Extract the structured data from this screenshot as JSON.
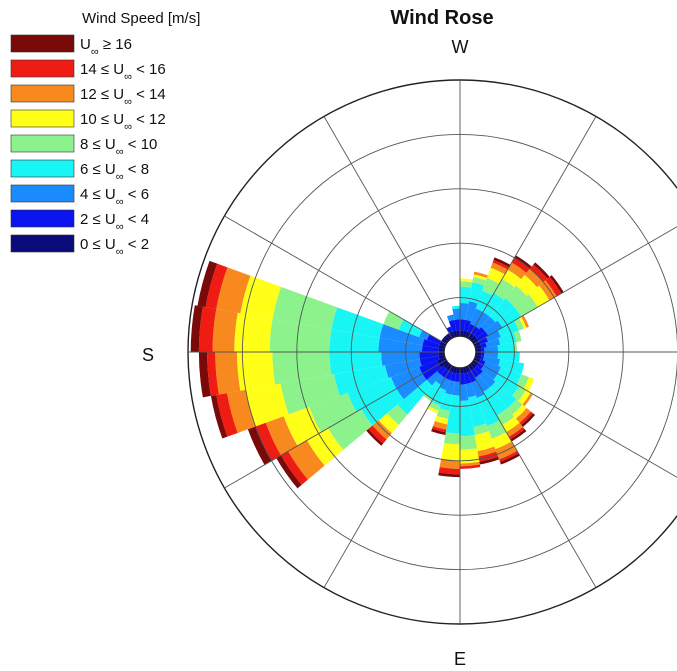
{
  "chart_data": {
    "type": "wind-rose",
    "title": "Wind Rose",
    "directions_labels": {
      "top": "W",
      "left": "S",
      "bottom": "E"
    },
    "legend": {
      "title": "Wind Speed [m/s]",
      "placement": "top-left",
      "entries": [
        {
          "label": "U∞ ≥ 16",
          "color": "#7a0a0a"
        },
        {
          "label": "14 ≤ U∞ < 16",
          "color": "#ee1c12"
        },
        {
          "label": "12 ≤ U∞ < 14",
          "color": "#f7891e"
        },
        {
          "label": "10 ≤ U∞ < 12",
          "color": "#ffff17"
        },
        {
          "label": "8 ≤ U∞ < 10",
          "color": "#8cf28c"
        },
        {
          "label": "6 ≤ U∞ < 8",
          "color": "#19f5f5"
        },
        {
          "label": "4 ≤ U∞ < 6",
          "color": "#1a8cff"
        },
        {
          "label": "2 ≤ U∞ < 4",
          "color": "#0a14f0"
        },
        {
          "label": "0 ≤ U∞ < 2",
          "color": "#0a0a7a"
        }
      ]
    },
    "bin_order": [
      "0-2",
      "2-4",
      "4-6",
      "6-8",
      "8-10",
      "10-12",
      "12-14",
      "14-16",
      ">=16"
    ],
    "bin_colors": [
      "#0a0a7a",
      "#0a14f0",
      "#1a8cff",
      "#19f5f5",
      "#8cf28c",
      "#ffff17",
      "#f7891e",
      "#ee1c12",
      "#7a0a0a"
    ],
    "grid": true,
    "rings": 5,
    "spokes": 12,
    "sectors": [
      {
        "angle_deg": 5,
        "cum": [
          0.08,
          0.09,
          0.14,
          0.22,
          0.22,
          0.22,
          0.22,
          0.22,
          0.22
        ]
      },
      {
        "angle_deg": 15,
        "cum": [
          0.08,
          0.09,
          0.15,
          0.24,
          0.24,
          0.24,
          0.24,
          0.24,
          0.24
        ]
      },
      {
        "angle_deg": 25,
        "cum": [
          0.08,
          0.1,
          0.16,
          0.24,
          0.27,
          0.29,
          0.29,
          0.29,
          0.29
        ]
      },
      {
        "angle_deg": 35,
        "cum": [
          0.08,
          0.1,
          0.16,
          0.25,
          0.28,
          0.3,
          0.31,
          0.31,
          0.31
        ]
      },
      {
        "angle_deg": 45,
        "cum": [
          0.08,
          0.11,
          0.17,
          0.27,
          0.3,
          0.32,
          0.34,
          0.35,
          0.36
        ]
      },
      {
        "angle_deg": 55,
        "cum": [
          0.08,
          0.11,
          0.17,
          0.27,
          0.31,
          0.34,
          0.36,
          0.37,
          0.38
        ]
      },
      {
        "angle_deg": 65,
        "cum": [
          0.08,
          0.12,
          0.18,
          0.29,
          0.34,
          0.38,
          0.42,
          0.43,
          0.44
        ]
      },
      {
        "angle_deg": 75,
        "cum": [
          0.08,
          0.12,
          0.17,
          0.28,
          0.31,
          0.37,
          0.39,
          0.41,
          0.42
        ]
      },
      {
        "angle_deg": 85,
        "cum": [
          0.08,
          0.12,
          0.18,
          0.31,
          0.36,
          0.41,
          0.42,
          0.43,
          0.43
        ]
      },
      {
        "angle_deg": 95,
        "cum": [
          0.08,
          0.11,
          0.16,
          0.3,
          0.34,
          0.4,
          0.43,
          0.45,
          0.46
        ]
      },
      {
        "angle_deg": 105,
        "cum": [
          0.08,
          0.11,
          0.16,
          0.22,
          0.25,
          0.27,
          0.29,
          0.3,
          0.31
        ]
      },
      {
        "angle_deg": 115,
        "cum": [
          0.08,
          0.11,
          0.15,
          0.21,
          0.23,
          0.24,
          0.24,
          0.24,
          0.24
        ]
      },
      {
        "angle_deg": 125,
        "cum": [
          0.08,
          0.11,
          0.14,
          0.2,
          0.21,
          0.21,
          0.21,
          0.21,
          0.21
        ]
      },
      {
        "angle_deg": 135,
        "cum": [
          0.08,
          0.11,
          0.16,
          0.3,
          0.35,
          0.39,
          0.42,
          0.44,
          0.45
        ]
      },
      {
        "angle_deg": 145,
        "cum": [
          0.09,
          0.16,
          0.27,
          0.42,
          0.56,
          0.65,
          0.73,
          0.76,
          0.78
        ]
      },
      {
        "angle_deg": 155,
        "cum": [
          0.09,
          0.16,
          0.27,
          0.44,
          0.59,
          0.69,
          0.76,
          0.8,
          0.83
        ]
      },
      {
        "angle_deg": 165,
        "cum": [
          0.08,
          0.15,
          0.28,
          0.47,
          0.67,
          0.8,
          0.87,
          0.91,
          0.93
        ]
      },
      {
        "angle_deg": 175,
        "cum": [
          0.08,
          0.15,
          0.29,
          0.48,
          0.69,
          0.82,
          0.9,
          0.93,
          0.96
        ]
      },
      {
        "angle_deg": 185,
        "cum": [
          0.08,
          0.14,
          0.3,
          0.48,
          0.7,
          0.83,
          0.91,
          0.96,
          0.99
        ]
      },
      {
        "angle_deg": 195,
        "cum": [
          0.08,
          0.14,
          0.3,
          0.48,
          0.7,
          0.82,
          0.91,
          0.95,
          0.98
        ]
      },
      {
        "angle_deg": 205,
        "cum": [
          0.08,
          0.13,
          0.16,
          0.24,
          0.3,
          0.3,
          0.3,
          0.3,
          0.3
        ]
      },
      {
        "angle_deg": 215,
        "cum": [
          0.08,
          0.08,
          0.08,
          0.08,
          0.08,
          0.08,
          0.08,
          0.08,
          0.08
        ]
      },
      {
        "angle_deg": 225,
        "cum": [
          0.08,
          0.08,
          0.08,
          0.08,
          0.08,
          0.08,
          0.08,
          0.08,
          0.08
        ]
      },
      {
        "angle_deg": 235,
        "cum": [
          0.08,
          0.08,
          0.08,
          0.08,
          0.08,
          0.08,
          0.08,
          0.08,
          0.08
        ]
      },
      {
        "angle_deg": 245,
        "cum": [
          0.08,
          0.1,
          0.1,
          0.1,
          0.1,
          0.1,
          0.1,
          0.1,
          0.1
        ]
      },
      {
        "angle_deg": 255,
        "cum": [
          0.08,
          0.12,
          0.14,
          0.14,
          0.14,
          0.14,
          0.14,
          0.14,
          0.14
        ]
      },
      {
        "angle_deg": 265,
        "cum": [
          0.08,
          0.12,
          0.16,
          0.17,
          0.17,
          0.17,
          0.17,
          0.17,
          0.17
        ]
      },
      {
        "angle_deg": 275,
        "cum": [
          0.08,
          0.12,
          0.18,
          0.24,
          0.26,
          0.27,
          0.27,
          0.27,
          0.27
        ]
      },
      {
        "angle_deg": 285,
        "cum": [
          0.08,
          0.12,
          0.19,
          0.26,
          0.28,
          0.29,
          0.3,
          0.3,
          0.3
        ]
      },
      {
        "angle_deg": 295,
        "cum": [
          0.08,
          0.11,
          0.17,
          0.24,
          0.29,
          0.33,
          0.35,
          0.36,
          0.37
        ]
      },
      {
        "angle_deg": 305,
        "cum": [
          0.08,
          0.11,
          0.17,
          0.25,
          0.31,
          0.35,
          0.38,
          0.4,
          0.41
        ]
      },
      {
        "angle_deg": 315,
        "cum": [
          0.08,
          0.12,
          0.17,
          0.26,
          0.32,
          0.37,
          0.4,
          0.42,
          0.43
        ]
      },
      {
        "angle_deg": 325,
        "cum": [
          0.08,
          0.12,
          0.18,
          0.26,
          0.33,
          0.38,
          0.41,
          0.43,
          0.44
        ]
      },
      {
        "angle_deg": 335,
        "cum": [
          0.08,
          0.11,
          0.16,
          0.23,
          0.25,
          0.26,
          0.27,
          0.27,
          0.27
        ]
      },
      {
        "angle_deg": 345,
        "cum": [
          0.08,
          0.1,
          0.15,
          0.21,
          0.23,
          0.23,
          0.23,
          0.23,
          0.23
        ]
      },
      {
        "angle_deg": 355,
        "cum": [
          0.08,
          0.09,
          0.14,
          0.2,
          0.21,
          0.21,
          0.21,
          0.21,
          0.21
        ]
      }
    ]
  }
}
